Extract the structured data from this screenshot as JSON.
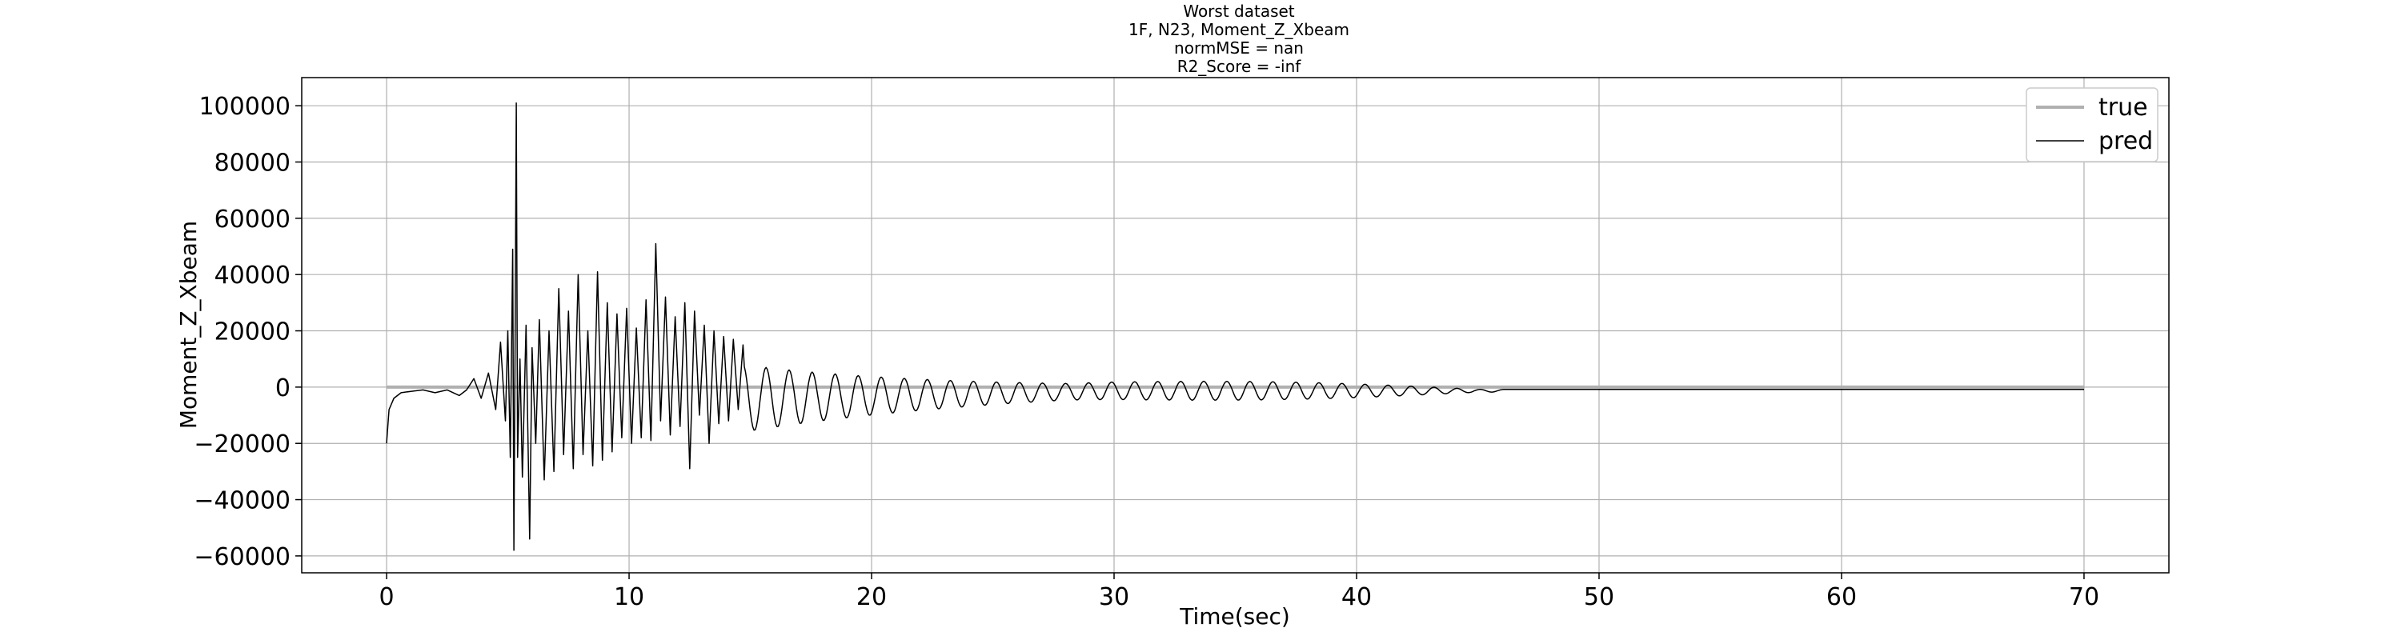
{
  "chart_data": {
    "type": "line",
    "title_lines": [
      "Worst dataset",
      "1F, N23, Moment_Z_Xbeam",
      "normMSE = nan",
      "R2_Score = -inf"
    ],
    "xlabel": "Time(sec)",
    "ylabel": "Moment_Z_Xbeam",
    "xlim": [
      -3.5,
      73.5
    ],
    "ylim": [
      -66000,
      110000
    ],
    "x_ticks": [
      0,
      10,
      20,
      30,
      40,
      50,
      60,
      70
    ],
    "y_ticks": [
      -60000,
      -40000,
      -20000,
      0,
      20000,
      40000,
      60000,
      80000,
      100000
    ],
    "grid": true,
    "legend_position": "top-right",
    "series": [
      {
        "name": "true",
        "color": "#b0b0b0",
        "x": [
          0,
          70
        ],
        "y": [
          0,
          0
        ]
      },
      {
        "name": "pred",
        "color": "#000000",
        "description": "damped oscillatory response",
        "x": [
          0,
          0.1,
          0.3,
          0.6,
          1.0,
          1.5,
          2.0,
          2.5,
          3.0,
          3.3,
          3.6,
          3.9,
          4.2,
          4.5,
          4.7,
          4.9,
          5.0,
          5.1,
          5.2,
          5.25,
          5.3,
          5.35,
          5.4,
          5.5,
          5.6,
          5.75,
          5.9,
          6.0,
          6.15,
          6.3,
          6.5,
          6.7,
          6.9,
          7.1,
          7.3,
          7.5,
          7.7,
          7.9,
          8.1,
          8.3,
          8.5,
          8.7,
          8.9,
          9.1,
          9.3,
          9.5,
          9.7,
          9.9,
          10.1,
          10.3,
          10.5,
          10.7,
          10.9,
          11.1,
          11.3,
          11.5,
          11.7,
          11.9,
          12.1,
          12.3,
          12.5,
          12.7,
          12.9,
          13.1,
          13.3,
          13.5,
          13.7,
          13.9,
          14.1,
          14.3,
          14.5,
          14.7
        ],
        "y": [
          -20000,
          -8000,
          -4000,
          -2000,
          -1500,
          -1000,
          -2000,
          -1000,
          -3000,
          -1000,
          3000,
          -4000,
          5000,
          -8000,
          16000,
          -12000,
          20000,
          -25000,
          49000,
          -58000,
          15000,
          101000,
          -25000,
          10000,
          -32000,
          22000,
          -54000,
          14000,
          -20000,
          24000,
          -33000,
          20000,
          -30000,
          35000,
          -24000,
          27000,
          -29000,
          40000,
          -24000,
          20000,
          -28000,
          41000,
          -26000,
          30000,
          -23000,
          26000,
          -18000,
          28000,
          -20000,
          21000,
          -18000,
          31000,
          -19000,
          51000,
          -12000,
          32000,
          -17000,
          25000,
          -14000,
          30000,
          -29000,
          27000,
          -10000,
          22000,
          -20000,
          20000,
          -13000,
          18000,
          -12000,
          17000,
          -8000,
          15000
        ]
      }
    ]
  }
}
